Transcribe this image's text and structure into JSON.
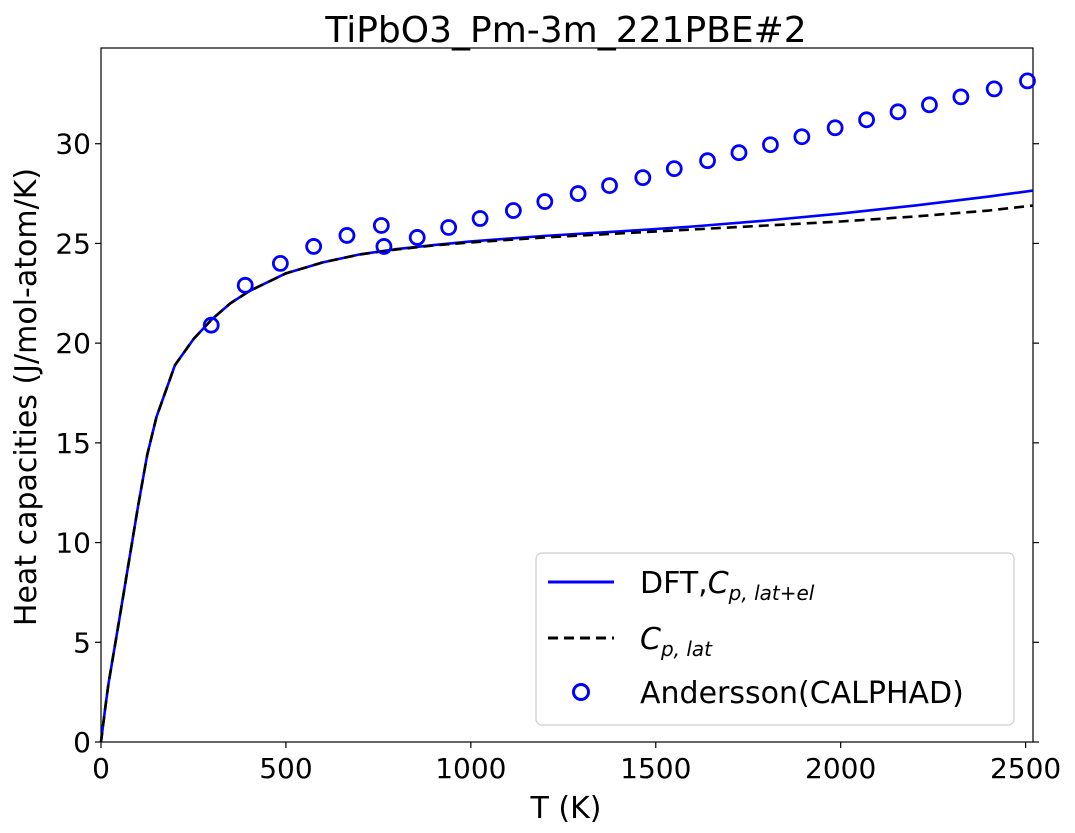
{
  "chart_data": {
    "type": "line",
    "title": "TiPbO3_Pm-3m_221PBE#2",
    "xlabel": "T (K)",
    "ylabel": "Heat capacities (J/mol-atom/K)",
    "xlim": [
      0,
      2520
    ],
    "ylim": [
      0,
      34.8
    ],
    "xticks": [
      0,
      500,
      1000,
      1500,
      2000,
      2500
    ],
    "yticks": [
      0,
      5,
      10,
      15,
      20,
      25,
      30
    ],
    "grid": false,
    "legend_position": "lower-right",
    "series": [
      {
        "name": "DFT,",
        "name_math": "C",
        "name_subscript": "p, lat+el",
        "style": "solid",
        "color": "#0000ff",
        "x": [
          0,
          10,
          20,
          30,
          50,
          75,
          100,
          125,
          150,
          200,
          250,
          300,
          350,
          400,
          500,
          600,
          700,
          800,
          900,
          1000,
          1200,
          1400,
          1600,
          1800,
          2000,
          2200,
          2400,
          2520
        ],
        "y": [
          0,
          1.5,
          2.9,
          4.0,
          6.2,
          9.0,
          11.8,
          14.4,
          16.3,
          18.9,
          20.2,
          21.2,
          22.0,
          22.6,
          23.5,
          24.05,
          24.45,
          24.72,
          24.92,
          25.1,
          25.38,
          25.6,
          25.85,
          26.15,
          26.5,
          26.9,
          27.35,
          27.65
        ]
      },
      {
        "name": "",
        "name_math": "C",
        "name_subscript": "p, lat",
        "style": "dashed",
        "color": "#000000",
        "x": [
          0,
          10,
          20,
          30,
          50,
          75,
          100,
          125,
          150,
          200,
          250,
          300,
          350,
          400,
          500,
          600,
          700,
          800,
          900,
          1000,
          1200,
          1400,
          1600,
          1800,
          2000,
          2200,
          2400,
          2520
        ],
        "y": [
          0,
          1.5,
          2.9,
          4.0,
          6.2,
          9.0,
          11.8,
          14.4,
          16.3,
          18.9,
          20.2,
          21.2,
          22.0,
          22.6,
          23.5,
          24.05,
          24.45,
          24.7,
          24.9,
          25.05,
          25.3,
          25.5,
          25.7,
          25.9,
          26.1,
          26.35,
          26.65,
          26.9
        ]
      },
      {
        "name": "Andersson(CALPHAD)",
        "style": "markers",
        "color": "#0000ff",
        "x": [
          298,
          390,
          485,
          575,
          665,
          758,
          765,
          855,
          940,
          1025,
          1115,
          1200,
          1290,
          1375,
          1465,
          1550,
          1640,
          1725,
          1810,
          1895,
          1985,
          2070,
          2155,
          2240,
          2325,
          2415,
          2505
        ],
        "y": [
          20.9,
          22.9,
          24.0,
          24.85,
          25.4,
          25.9,
          24.85,
          25.3,
          25.8,
          26.25,
          26.65,
          27.1,
          27.5,
          27.9,
          28.3,
          28.75,
          29.15,
          29.55,
          29.95,
          30.35,
          30.8,
          31.2,
          31.6,
          31.95,
          32.35,
          32.75,
          33.15
        ]
      }
    ]
  }
}
